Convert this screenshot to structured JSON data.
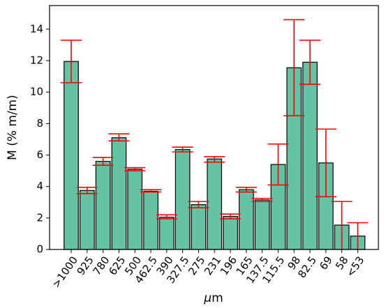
{
  "chart_data": {
    "type": "bar",
    "xlabel_prefix": "μ",
    "xlabel_suffix": "m",
    "ylabel": "M (% m/m)",
    "ylim": [
      0,
      15.5
    ],
    "yticks": [
      0,
      2,
      4,
      6,
      8,
      10,
      12,
      14
    ],
    "categories": [
      ">1000",
      "925",
      "780",
      "625",
      "500",
      "462.5",
      "390",
      "327.5",
      "275",
      "231",
      "196",
      "165",
      "137.5",
      "115.5",
      "98",
      "82.5",
      "69",
      "58",
      "<53"
    ],
    "values": [
      11.95,
      3.75,
      5.6,
      7.1,
      5.1,
      3.7,
      2.05,
      6.35,
      2.85,
      5.75,
      2.1,
      3.8,
      3.15,
      5.4,
      11.55,
      11.9,
      5.5,
      1.55,
      0.85
    ],
    "err_low": [
      10.6,
      3.55,
      5.35,
      6.9,
      5.0,
      3.65,
      1.95,
      6.2,
      2.65,
      5.55,
      1.95,
      3.65,
      3.05,
      4.1,
      8.5,
      10.5,
      3.35,
      0.0,
      0.0
    ],
    "err_high": [
      13.3,
      3.95,
      5.85,
      7.35,
      5.2,
      3.8,
      2.2,
      6.5,
      3.05,
      5.9,
      2.25,
      3.95,
      3.25,
      6.7,
      14.6,
      13.3,
      7.65,
      3.05,
      1.7
    ],
    "colors": {
      "bar_fill": "#66c2a5",
      "bar_edge": "#000000",
      "error": "#ff0000",
      "axis": "#000000"
    },
    "grid": false,
    "legend": "none"
  }
}
